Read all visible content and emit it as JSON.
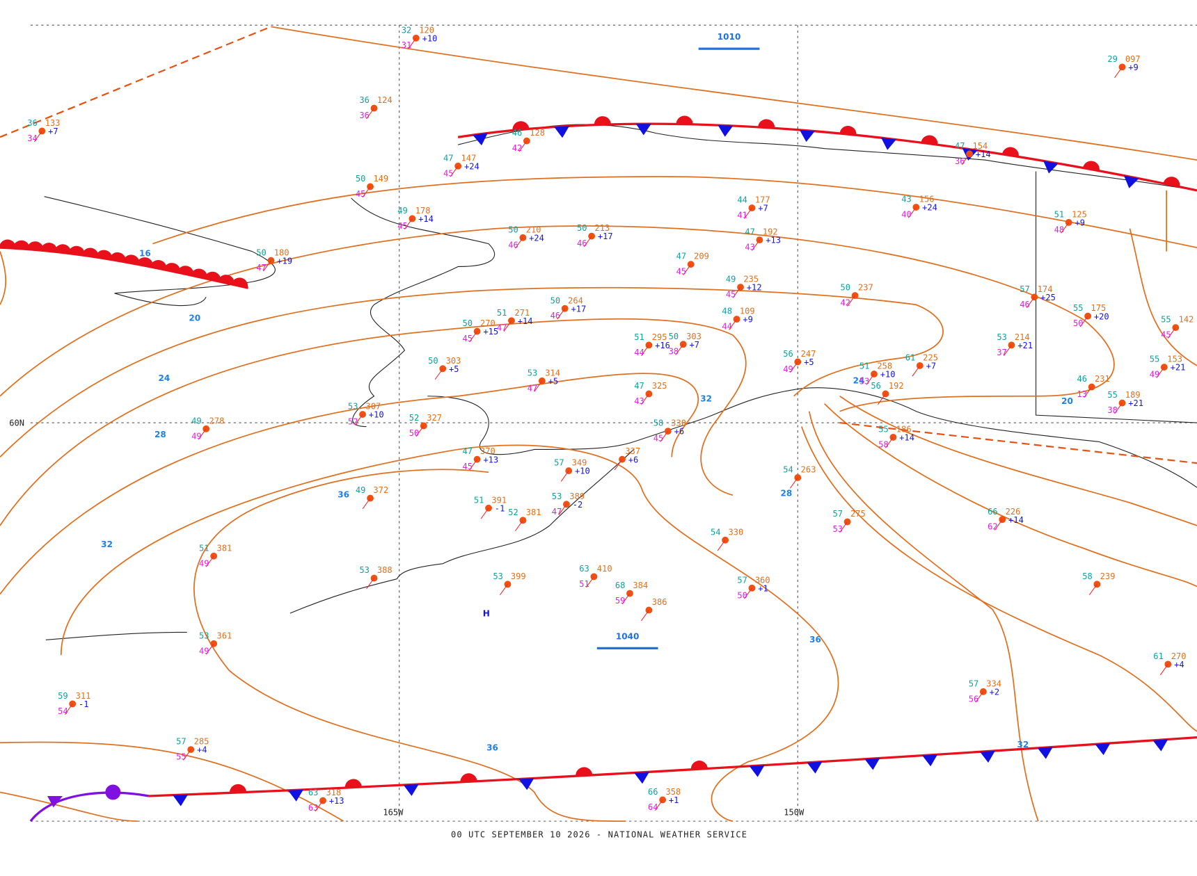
{
  "map": {
    "footer": "00 UTC SEPTEMBER 10 2026 - NATIONAL WEATHER SERVICE",
    "grid_labels": [
      "165W",
      "150W",
      "60N"
    ],
    "high_center": "H",
    "pressure_labels": [
      "1010",
      "1040"
    ],
    "isobar_labels": [
      "16",
      "20",
      "24",
      "28",
      "32",
      "36",
      "32",
      "24",
      "28",
      "36",
      "36",
      "32",
      "20"
    ],
    "stations": [
      {
        "t": "32",
        "p": "120",
        "d": "31",
        "tend": "+10"
      },
      {
        "t": "29",
        "p": "097",
        "tend": "+9"
      },
      {
        "t": "36",
        "p": "133",
        "d": "34",
        "tend": "+7"
      },
      {
        "t": "36",
        "p": "124",
        "d": "36"
      },
      {
        "t": "46",
        "p": "128",
        "d": "42"
      },
      {
        "t": "47",
        "p": "147",
        "d": "45",
        "tend": "+24"
      },
      {
        "t": "50",
        "p": "149",
        "d": "45"
      },
      {
        "t": "49",
        "p": "178",
        "d": "45",
        "tend": "+14"
      },
      {
        "t": "50",
        "p": "180",
        "d": "47",
        "tend": "+19"
      },
      {
        "t": "50",
        "p": "210",
        "d": "46",
        "tend": "+24"
      },
      {
        "t": "50",
        "p": "213",
        "d": "46",
        "tend": "+17"
      },
      {
        "t": "44",
        "p": "177",
        "d": "41",
        "tend": "+7"
      },
      {
        "t": "47",
        "p": "192",
        "d": "43",
        "tend": "+13"
      },
      {
        "t": "43",
        "p": "156",
        "d": "40",
        "tend": "+24"
      },
      {
        "t": "51",
        "p": "125",
        "d": "48",
        "tend": "+9"
      },
      {
        "t": "47",
        "p": "154",
        "d": "36",
        "tend": "+14"
      },
      {
        "t": "47",
        "p": "209",
        "d": "45"
      },
      {
        "t": "49",
        "p": "235",
        "d": "45",
        "tend": "+12"
      },
      {
        "t": "50",
        "p": "237",
        "d": "42"
      },
      {
        "t": "57",
        "p": "174",
        "d": "46",
        "tend": "+25"
      },
      {
        "t": "55",
        "p": "175",
        "d": "50",
        "tend": "+20"
      },
      {
        "t": "48",
        "p": "109",
        "d": "44",
        "tend": "+9"
      },
      {
        "t": "50",
        "p": "264",
        "d": "46",
        "tend": "+17"
      },
      {
        "t": "51",
        "p": "271",
        "d": "47",
        "tend": "+14"
      },
      {
        "t": "50",
        "p": "270",
        "d": "45",
        "tend": "+15"
      },
      {
        "t": "51",
        "p": "295",
        "d": "44",
        "tend": "+16"
      },
      {
        "t": "50",
        "p": "303",
        "d": "38",
        "tend": "+7"
      },
      {
        "t": "56",
        "p": "247",
        "d": "49",
        "tend": "+5"
      },
      {
        "t": "51",
        "p": "258",
        "d": "53",
        "tend": "+10"
      },
      {
        "t": "61",
        "p": "225",
        "tend": "+7"
      },
      {
        "t": "53",
        "p": "214",
        "d": "37",
        "tend": "+21"
      },
      {
        "t": "55",
        "p": "142",
        "d": "45"
      },
      {
        "t": "55",
        "p": "153",
        "d": "49",
        "tend": "+21"
      },
      {
        "t": "46",
        "p": "231",
        "d": "13"
      },
      {
        "t": "55",
        "p": "189",
        "d": "38",
        "tend": "+21"
      },
      {
        "t": "50",
        "p": "303",
        "tend": "+5"
      },
      {
        "t": "53",
        "p": "314",
        "d": "47",
        "tend": "+5"
      },
      {
        "t": "47",
        "p": "325",
        "d": "43"
      },
      {
        "t": "53",
        "p": "307",
        "d": "52",
        "tend": "+10"
      },
      {
        "t": "52",
        "p": "327",
        "d": "50"
      },
      {
        "t": "49",
        "p": "278",
        "d": "49"
      },
      {
        "t": "58",
        "p": "330",
        "d": "45",
        "tend": "+6"
      },
      {
        "t": "57",
        "p": "349",
        "tend": "+10"
      },
      {
        "t": "47",
        "p": "370",
        "d": "45",
        "tend": "+13"
      },
      {
        "p": "337",
        "tend": "+6"
      },
      {
        "t": "49",
        "p": "372"
      },
      {
        "t": "51",
        "p": "391",
        "tend": "-1"
      },
      {
        "t": "53",
        "p": "389",
        "d": "47",
        "tend": "-2"
      },
      {
        "t": "52",
        "p": "381"
      },
      {
        "t": "51",
        "p": "381",
        "d": "49"
      },
      {
        "t": "53",
        "p": "388"
      },
      {
        "t": "53",
        "p": "399"
      },
      {
        "t": "63",
        "p": "410",
        "d": "51"
      },
      {
        "t": "68",
        "p": "384",
        "d": "59"
      },
      {
        "p": "386"
      },
      {
        "t": "54",
        "p": "330"
      },
      {
        "t": "57",
        "p": "360",
        "d": "50",
        "tend": "+1"
      },
      {
        "t": "57",
        "p": "275",
        "d": "53"
      },
      {
        "t": "58",
        "p": "239"
      },
      {
        "t": "66",
        "p": "226",
        "d": "62",
        "tend": "+14"
      },
      {
        "t": "57",
        "p": "334",
        "d": "56",
        "tend": "+2"
      },
      {
        "t": "61",
        "p": "270",
        "tend": "+4"
      },
      {
        "t": "53",
        "p": "361",
        "d": "49"
      },
      {
        "t": "59",
        "p": "311",
        "d": "54",
        "tend": "-1"
      },
      {
        "t": "57",
        "p": "285",
        "d": "55",
        "tend": "+4"
      },
      {
        "t": "63",
        "p": "318",
        "d": "63",
        "tend": "+13"
      },
      {
        "t": "66",
        "p": "358",
        "d": "64",
        "tend": "+1"
      },
      {
        "t": "54",
        "p": "263"
      },
      {
        "t": "55",
        "p": "186",
        "d": "58",
        "tend": "+14"
      },
      {
        "t": "56",
        "p": "192"
      }
    ]
  }
}
